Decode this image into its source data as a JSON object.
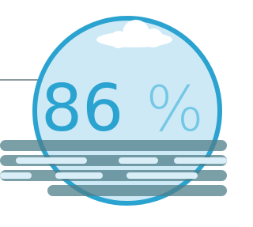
{
  "humidity": {
    "value": 86,
    "unit": "%"
  }
}
